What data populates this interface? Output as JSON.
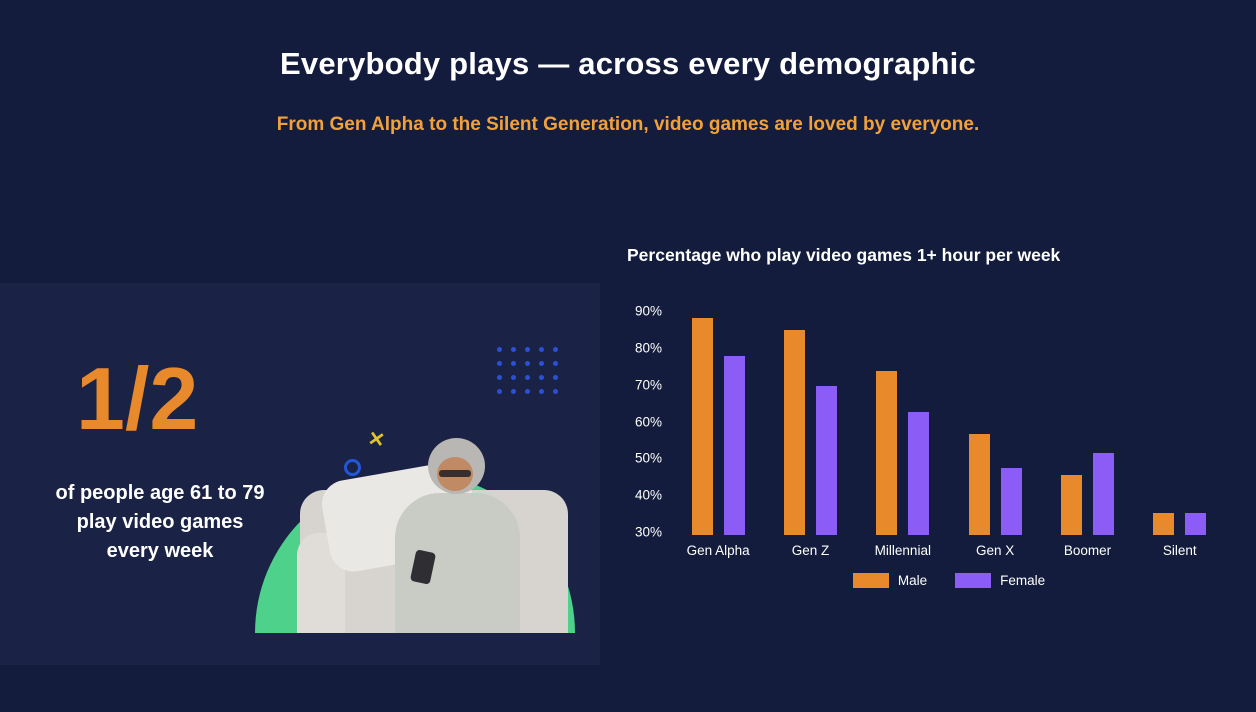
{
  "page": {
    "title": "Everybody plays — across every demographic",
    "subtitle": "From Gen Alpha to the Silent Generation, video games are loved by everyone."
  },
  "stat_card": {
    "big_number": "1/2",
    "lines": [
      "of people age 61 to 79",
      "play video games",
      "every week"
    ]
  },
  "decorations": {
    "x_glyph": "✕"
  },
  "chart_data": {
    "type": "bar",
    "title": "Percentage who play video games 1+ hour per week",
    "categories": [
      "Gen Alpha",
      "Gen Z",
      "Millennial",
      "Gen X",
      "Boomer",
      "Silent"
    ],
    "series": [
      {
        "name": "Male",
        "color": "#E8892C",
        "values": [
          88,
          85,
          74,
          57,
          46,
          36
        ]
      },
      {
        "name": "Female",
        "color": "#8C5CF6",
        "values": [
          78,
          70,
          63,
          48,
          52,
          36
        ]
      }
    ],
    "ylim": [
      30,
      90
    ],
    "yticks": [
      90,
      80,
      70,
      60,
      50,
      40,
      30
    ],
    "ytick_suffix": "%",
    "legend_position": "bottom",
    "grid": false
  },
  "colors": {
    "background": "#131C3C",
    "panel_background": "#1A2345",
    "accent_orange": "#E8892C",
    "subtitle_orange": "#F0A13C",
    "accent_purple": "#8C5CF6",
    "accent_green": "#4ED18B",
    "accent_blue": "#2B50D8",
    "accent_yellow": "#E0C42F",
    "text": "#FFFFFF"
  }
}
